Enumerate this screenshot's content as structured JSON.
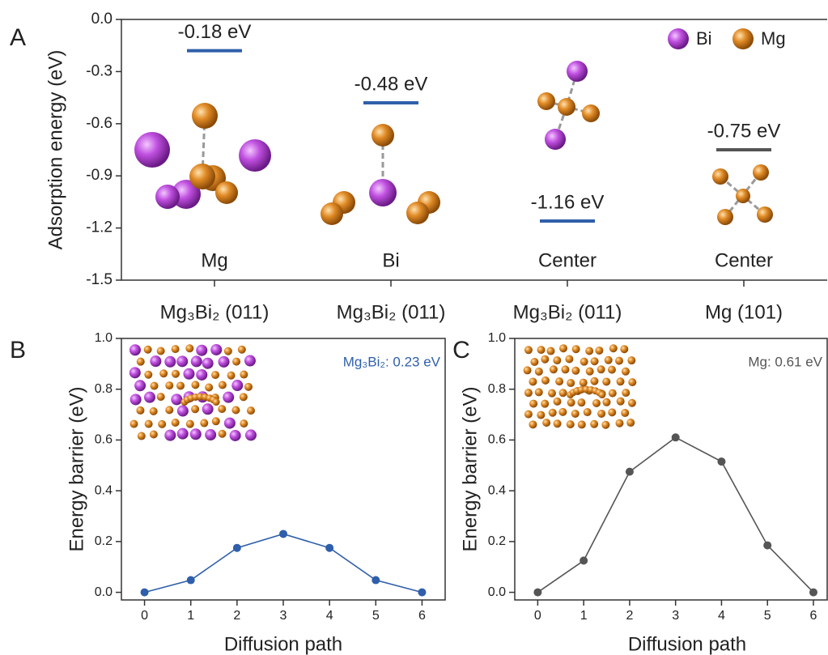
{
  "chart_data": [
    {
      "type": "level",
      "panel": "A",
      "ylabel": "Adsorption energy (eV)",
      "categories": [
        "Mg₃Bi₂ (011)",
        "Mg₃Bi₂ (011)",
        "Mg₃Bi₂ (011)",
        "Mg (101)"
      ],
      "sites": [
        "Mg",
        "Bi",
        "Center",
        "Center"
      ],
      "values": [
        -0.18,
        -0.48,
        -1.16,
        -0.75
      ],
      "value_labels": [
        "-0.18 eV",
        "-0.48 eV",
        "-1.16 eV",
        "-0.75 eV"
      ],
      "colors": [
        "#2f5faa",
        "#2f5faa",
        "#2f5faa",
        "#555555"
      ],
      "ylim": [
        -1.5,
        0
      ],
      "yticks": [
        -1.5,
        -1.2,
        -0.9,
        -0.6,
        -0.3,
        {
          "value": 0,
          "label": "0.0"
        }
      ],
      "legend": [
        {
          "name": "Bi",
          "color": "#b444d8"
        },
        {
          "name": "Mg",
          "color": "#d9831f"
        }
      ]
    },
    {
      "type": "line",
      "panel": "B",
      "xlabel": "Diffusion path",
      "ylabel": "Energy barrier (eV)",
      "annotation": "Mg₃Bi₂: 0.23 eV",
      "annotation_color": "#2f5faa",
      "x": [
        0,
        1,
        2,
        3,
        4,
        5,
        6
      ],
      "series": [
        {
          "color": "#2f5faa",
          "values": [
            0,
            0.048,
            0.175,
            0.23,
            0.175,
            0.048,
            0
          ]
        }
      ],
      "xlim": [
        -0.5,
        6.5
      ],
      "ylim": [
        -0.03,
        1.0
      ],
      "xticks": [
        0,
        1,
        2,
        3,
        4,
        5,
        6
      ],
      "yticks": [
        {
          "value": 0,
          "label": "0.0"
        },
        0.2,
        0.4,
        0.6,
        0.8,
        {
          "value": 1,
          "label": "1.0"
        }
      ]
    },
    {
      "type": "line",
      "panel": "C",
      "xlabel": "Diffusion path",
      "ylabel": "Energy barrier (eV)",
      "annotation": "Mg: 0.61 eV",
      "annotation_color": "#555555",
      "x": [
        0,
        1,
        2,
        3,
        4,
        5,
        6
      ],
      "series": [
        {
          "color": "#555555",
          "values": [
            0,
            0.125,
            0.475,
            0.61,
            0.515,
            0.185,
            0
          ]
        }
      ],
      "xlim": [
        -0.5,
        6.3
      ],
      "ylim": [
        -0.03,
        1.0
      ],
      "xticks": [
        0,
        1,
        2,
        3,
        4,
        5,
        6
      ],
      "yticks": [
        {
          "value": 0,
          "label": "0.0"
        },
        0.2,
        0.4,
        0.6,
        0.8,
        {
          "value": 1,
          "label": "1.0"
        }
      ]
    }
  ]
}
